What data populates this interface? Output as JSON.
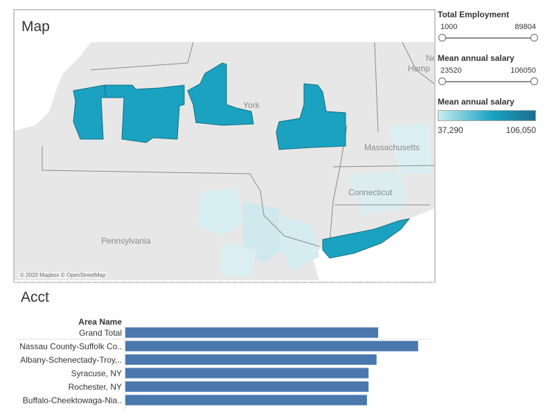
{
  "map": {
    "title": "Map",
    "attribution": "© 2020 Mapbox © OpenStreetMap",
    "labels": {
      "york": "York",
      "pennsylvania": "Pennsylvania",
      "massachusetts": "Massachusetts",
      "connecticut": "Connecticut",
      "new_hampshire_line1": "Ne",
      "new_hampshire_line2": "Hamp"
    },
    "colors": {
      "land": "#e6e7e6",
      "water": "#ffffff",
      "highlight": "#1ba2c0",
      "light": "#d7eef2"
    }
  },
  "filters": {
    "total_employment": {
      "title": "Total Employment",
      "min": "1000",
      "max": "89804"
    },
    "salary_filter": {
      "title": "Mean annual salary",
      "min": "23520",
      "max": "106050"
    },
    "legend": {
      "title": "Mean annual salary",
      "min": "37,290",
      "max": "106,050"
    }
  },
  "bar_section": {
    "title": "Acct",
    "column_header": "Area Name",
    "color": "#4a78ae"
  },
  "chart_data": {
    "type": "bar",
    "orientation": "horizontal",
    "categories": [
      "Grand Total",
      "Nassau County-Suffolk Co..",
      "Albany-Schenectady-Troy,..",
      "Syracuse, NY",
      "Rochester, NY",
      "Buffalo-Cheektowaga-Nia.."
    ],
    "values": [
      79,
      91.5,
      78.5,
      76,
      76,
      75.5
    ],
    "xlim": [
      0,
      95
    ],
    "grid": false
  }
}
